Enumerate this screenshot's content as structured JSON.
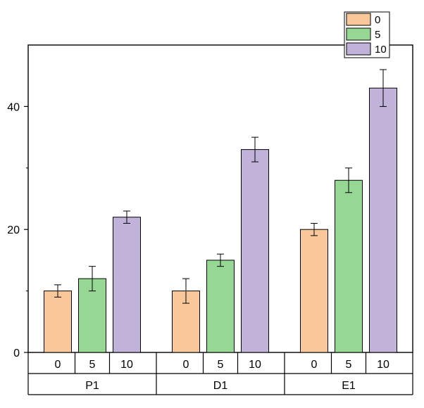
{
  "chart_data": {
    "type": "bar",
    "groups": [
      {
        "label": "P1",
        "categories": [
          "0",
          "5",
          "10"
        ],
        "values": [
          10,
          12,
          22
        ],
        "errors": [
          1,
          2,
          1
        ]
      },
      {
        "label": "D1",
        "categories": [
          "0",
          "5",
          "10"
        ],
        "values": [
          10,
          15,
          33
        ],
        "errors": [
          2,
          1,
          2
        ]
      },
      {
        "label": "E1",
        "categories": [
          "0",
          "5",
          "10"
        ],
        "values": [
          20,
          28,
          43
        ],
        "errors": [
          1,
          2,
          3
        ]
      }
    ],
    "series": [
      {
        "name": "0",
        "color": "#f9c89a"
      },
      {
        "name": "5",
        "color": "#97d794"
      },
      {
        "name": "10",
        "color": "#c1b2d9"
      }
    ],
    "ylim": [
      0,
      50
    ],
    "yticks": [
      "0",
      "20",
      "40"
    ],
    "xlabel": "",
    "ylabel": "",
    "title": "",
    "grid": false,
    "legend_position": "top-right",
    "error_bars": true
  }
}
